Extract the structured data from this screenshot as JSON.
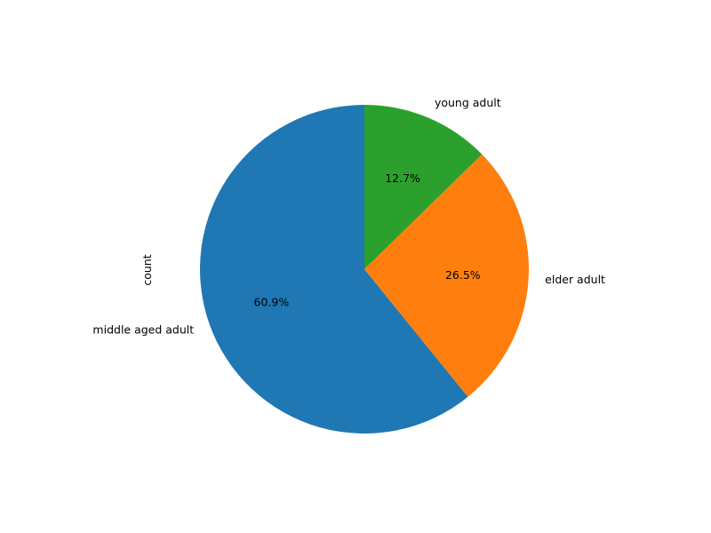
{
  "chart_data": {
    "type": "pie",
    "title": "",
    "ylabel": "count",
    "start_angle_deg": 90,
    "direction": "counterclockwise",
    "slices": [
      {
        "label": "middle aged adult",
        "percent": 60.9,
        "percent_label": "60.9%",
        "color": "#1f77b4"
      },
      {
        "label": "elder adult",
        "percent": 26.5,
        "percent_label": "26.5%",
        "color": "#ff7f0e"
      },
      {
        "label": "young adult",
        "percent": 12.7,
        "percent_label": "12.7%",
        "color": "#2ca02c"
      }
    ]
  }
}
